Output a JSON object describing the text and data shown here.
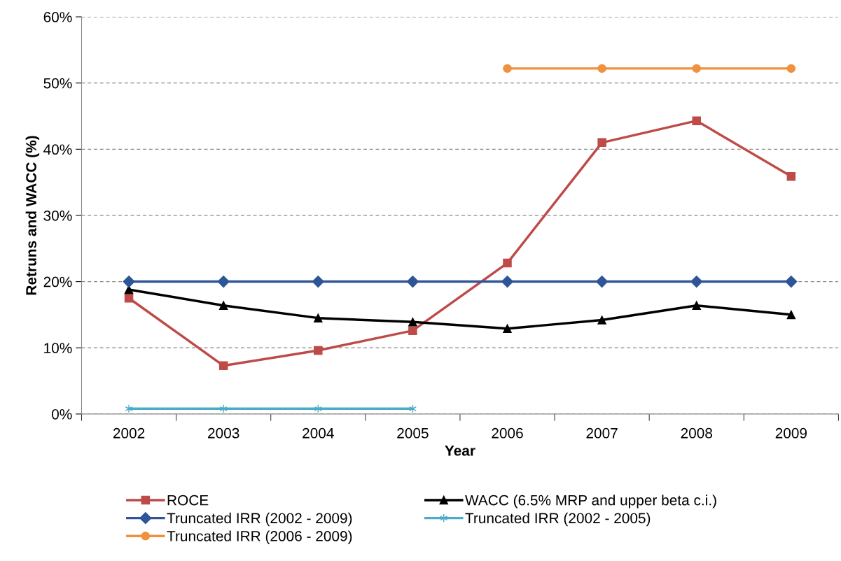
{
  "chart_data": {
    "type": "line",
    "xlabel": "Year",
    "ylabel": "Retruns and WACC (%)",
    "categories": [
      "2002",
      "2003",
      "2004",
      "2005",
      "2006",
      "2007",
      "2008",
      "2009"
    ],
    "series": [
      {
        "name": "ROCE",
        "color": "#be4b48",
        "marker": "square",
        "values": [
          17.5,
          7.3,
          9.6,
          12.6,
          22.8,
          41.0,
          44.3,
          35.9
        ]
      },
      {
        "name": "WACC (6.5% MRP and upper beta c.i.)",
        "color": "#000000",
        "marker": "triangle",
        "values": [
          18.8,
          16.4,
          14.5,
          13.9,
          12.9,
          14.2,
          16.4,
          15.0
        ]
      },
      {
        "name": "Truncated IRR (2002 - 2009)",
        "color": "#2e5597",
        "marker": "diamond",
        "values": [
          20,
          20,
          20,
          20,
          20,
          20,
          20,
          20
        ]
      },
      {
        "name": "Truncated IRR (2002 - 2005)",
        "color": "#4bacc6",
        "marker": "cross",
        "values": [
          0.8,
          0.8,
          0.8,
          0.8,
          null,
          null,
          null,
          null
        ]
      },
      {
        "name": "Truncated IRR (2006 - 2009)",
        "color": "#f0913f",
        "marker": "circle",
        "values": [
          null,
          null,
          null,
          null,
          52.2,
          52.2,
          52.2,
          52.2
        ]
      }
    ],
    "ylim": [
      0,
      60
    ],
    "yticks": [
      {
        "value": 0,
        "label": "0%"
      },
      {
        "value": 10,
        "label": "10%"
      },
      {
        "value": 20,
        "label": "20%"
      },
      {
        "value": 30,
        "label": "30%"
      },
      {
        "value": 40,
        "label": "40%"
      },
      {
        "value": 50,
        "label": "50%"
      },
      {
        "value": 60,
        "label": "60%"
      }
    ],
    "grid": "y",
    "legend": "bottom",
    "line_style": "solid"
  }
}
